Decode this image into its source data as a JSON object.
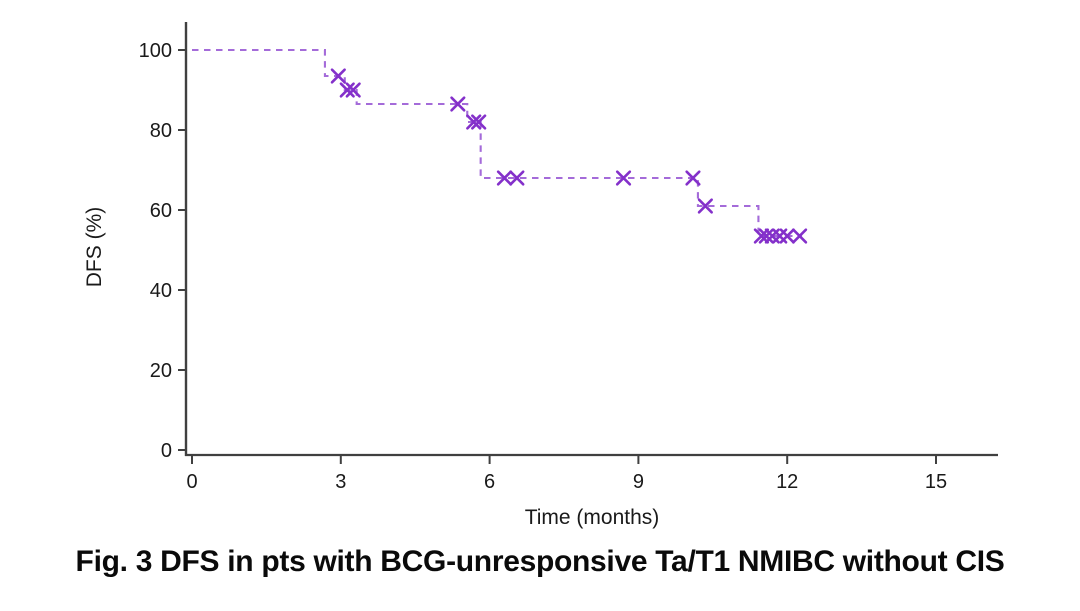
{
  "figure": {
    "caption": "Fig. 3 DFS in pts with BCG-unresponsive Ta/T1 NMIBC without CIS"
  },
  "colors": {
    "axis": "#404040",
    "tick_text": "#1a1a1a",
    "curve": "#A46BD9",
    "censor_marker": "#8430CA"
  },
  "chart_data": {
    "type": "line",
    "subtype": "kaplan_meier_step",
    "title": "",
    "xlabel": "Time (months)",
    "ylabel": "DFS (%)",
    "x_ticks": [
      0,
      3,
      6,
      9,
      12,
      15
    ],
    "y_ticks": [
      0,
      20,
      40,
      60,
      80,
      100
    ],
    "xlim": [
      0,
      16.3
    ],
    "ylim": [
      0,
      105
    ],
    "grid": false,
    "legend_position": "none",
    "series": [
      {
        "name": "DFS",
        "line_style": "dashed",
        "color": "#A46BD9",
        "marker": "x",
        "marker_color": "#8430CA",
        "steps": [
          [
            0,
            100
          ],
          [
            2.68,
            93.5
          ],
          [
            3.08,
            90
          ],
          [
            3.32,
            86.5
          ],
          [
            5.55,
            82
          ],
          [
            5.82,
            68
          ],
          [
            10.2,
            61
          ],
          [
            11.42,
            53.5
          ]
        ],
        "end_time": 12.3,
        "censor_marks": [
          [
            2.95,
            93.5
          ],
          [
            3.13,
            90
          ],
          [
            3.25,
            90
          ],
          [
            5.36,
            86.5
          ],
          [
            5.68,
            82
          ],
          [
            5.78,
            82
          ],
          [
            6.3,
            68
          ],
          [
            6.55,
            68
          ],
          [
            8.7,
            68
          ],
          [
            10.1,
            68
          ],
          [
            10.35,
            61
          ],
          [
            11.48,
            53.5
          ],
          [
            11.58,
            53.5
          ],
          [
            11.7,
            53.5
          ],
          [
            11.85,
            53.5
          ],
          [
            12.0,
            53.5
          ],
          [
            12.25,
            53.5
          ]
        ]
      }
    ]
  }
}
